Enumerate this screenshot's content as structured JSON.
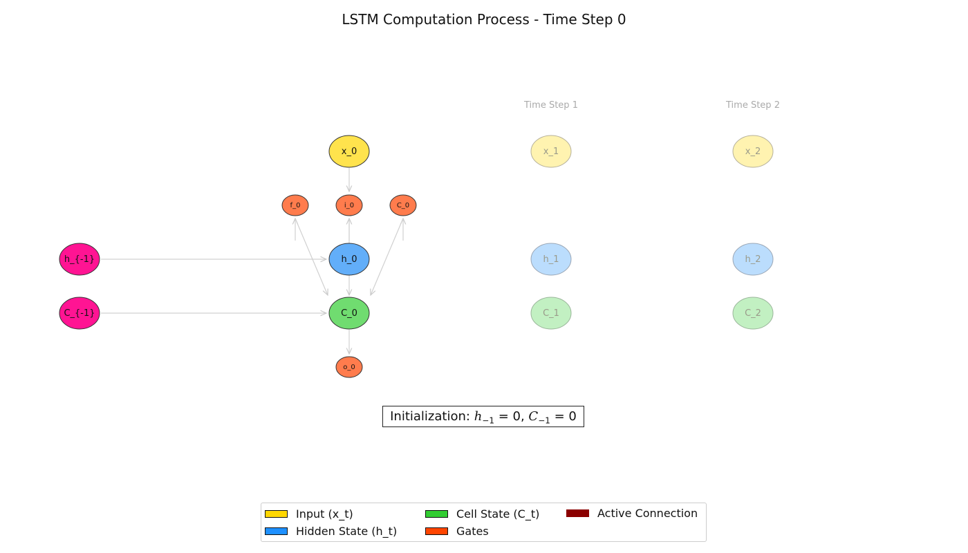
{
  "title": "LSTM Computation Process - Time Step 0",
  "colors": {
    "input": "#FFD700",
    "hidden": "#1E90FF",
    "cell": "#32CD32",
    "gate": "#FF4500",
    "active": "#8B0000",
    "prev_state": "#FF1493"
  },
  "time_step_labels": [
    "Time Step 1",
    "Time Step 2"
  ],
  "active_nodes": {
    "x": "x_0",
    "h": "h_0",
    "c": "C_0",
    "gate_f": "f_0",
    "gate_i": "i_0",
    "gate_c": "C_0",
    "gate_o": "o_0"
  },
  "prev_nodes": {
    "h": "h_{-1}",
    "c": "C_{-1}"
  },
  "future_nodes": [
    {
      "x": "x_1",
      "h": "h_1",
      "c": "C_1"
    },
    {
      "x": "x_2",
      "h": "h_2",
      "c": "C_2"
    }
  ],
  "init_text": {
    "prefix": "Initialization: ",
    "h": "h",
    "h_sub": "−1",
    "eq1": " = 0, ",
    "c": "C",
    "c_sub": "−1",
    "eq2": " = 0"
  },
  "legend": [
    {
      "label": "Input (x_t)",
      "color": "#FFD700"
    },
    {
      "label": "Hidden State (h_t)",
      "color": "#1E90FF"
    },
    {
      "label": "Cell State (C_t)",
      "color": "#32CD32"
    },
    {
      "label": "Gates",
      "color": "#FF4500"
    },
    {
      "label": "Active Connection",
      "color": "#8B0000"
    }
  ]
}
